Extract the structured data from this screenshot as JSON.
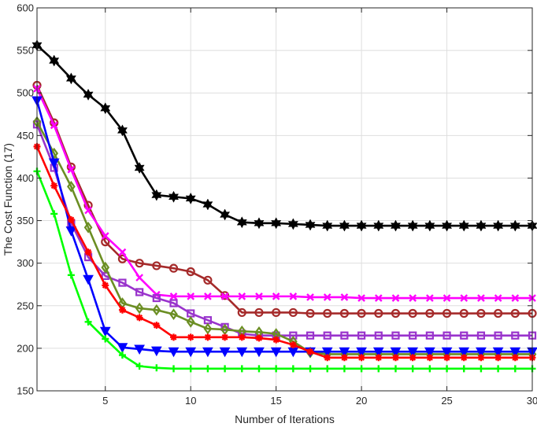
{
  "chart_data": {
    "type": "line",
    "title": "",
    "xlabel": "Number of Iterations",
    "ylabel": "The Cost Function (17)",
    "xlim": [
      1,
      30
    ],
    "ylim": [
      150,
      600
    ],
    "xticks": [
      5,
      10,
      15,
      20,
      25,
      30
    ],
    "yticks": [
      150,
      200,
      250,
      300,
      350,
      400,
      450,
      500,
      550,
      600
    ],
    "grid": true,
    "x": [
      1,
      2,
      3,
      4,
      5,
      6,
      7,
      8,
      9,
      10,
      11,
      12,
      13,
      14,
      15,
      16,
      17,
      18,
      19,
      20,
      21,
      22,
      23,
      24,
      25,
      26,
      27,
      28,
      29,
      30
    ],
    "series": [
      {
        "name": "black-hexagram",
        "color": "#000000",
        "marker": "hexagram",
        "values": [
          556,
          538,
          517,
          498,
          482,
          456,
          412,
          380,
          378,
          376,
          369,
          357,
          348,
          347,
          347,
          346,
          345,
          344,
          344,
          344,
          344,
          344,
          344,
          344,
          344,
          344,
          344,
          344,
          344,
          344
        ]
      },
      {
        "name": "brown-circle",
        "color": "#A52A2A",
        "marker": "circle",
        "values": [
          509,
          465,
          413,
          368,
          325,
          305,
          300,
          297,
          294,
          290,
          280,
          262,
          242,
          242,
          242,
          242,
          241,
          241,
          241,
          241,
          241,
          241,
          241,
          241,
          241,
          241,
          241,
          241,
          241,
          241
        ]
      },
      {
        "name": "magenta-x",
        "color": "#FF00FF",
        "marker": "x",
        "values": [
          505,
          462,
          410,
          362,
          332,
          313,
          283,
          263,
          261,
          261,
          261,
          261,
          261,
          261,
          261,
          261,
          260,
          260,
          260,
          259,
          259,
          259,
          259,
          259,
          259,
          259,
          259,
          259,
          259,
          259
        ]
      },
      {
        "name": "purple-square",
        "color": "#9933CC",
        "marker": "square",
        "values": [
          463,
          412,
          347,
          307,
          285,
          277,
          266,
          259,
          253,
          241,
          233,
          225,
          217,
          215,
          215,
          215,
          215,
          215,
          215,
          215,
          215,
          215,
          215,
          215,
          215,
          215,
          215,
          215,
          215,
          215
        ]
      },
      {
        "name": "olive-diamond",
        "color": "#6B8E23",
        "marker": "diamond",
        "values": [
          466,
          429,
          390,
          342,
          295,
          253,
          247,
          245,
          240,
          231,
          223,
          222,
          220,
          219,
          217,
          208,
          195,
          193,
          193,
          193,
          193,
          193,
          193,
          193,
          193,
          193,
          193,
          193,
          193,
          193
        ]
      },
      {
        "name": "blue-triangle",
        "color": "#0000FF",
        "marker": "triangle-down",
        "values": [
          491,
          418,
          338,
          281,
          220,
          201,
          199,
          197,
          196,
          196,
          196,
          196,
          196,
          196,
          196,
          196,
          196,
          196,
          196,
          196,
          196,
          196,
          196,
          196,
          196,
          196,
          196,
          196,
          196,
          196
        ]
      },
      {
        "name": "red-asterisk",
        "color": "#FF0000",
        "marker": "asterisk",
        "values": [
          437,
          391,
          351,
          313,
          274,
          245,
          236,
          227,
          213,
          213,
          213,
          213,
          213,
          212,
          210,
          204,
          196,
          189,
          189,
          189,
          189,
          189,
          189,
          189,
          189,
          189,
          189,
          189,
          189,
          189
        ]
      },
      {
        "name": "green-plus",
        "color": "#00FF00",
        "marker": "plus",
        "values": [
          408,
          358,
          286,
          231,
          211,
          192,
          179,
          177,
          176,
          176,
          176,
          176,
          176,
          176,
          176,
          176,
          176,
          176,
          176,
          176,
          176,
          176,
          176,
          176,
          176,
          176,
          176,
          176,
          176,
          176
        ]
      }
    ]
  }
}
